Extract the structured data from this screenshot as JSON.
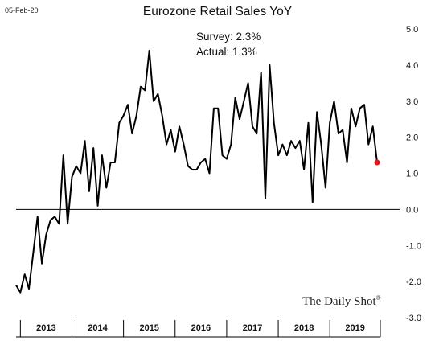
{
  "date_stamp": "05-Feb-20",
  "chart_data": {
    "type": "line",
    "title": "Eurozone Retail Sales YoY",
    "annotations": [
      "Survey: 2.3%",
      "Actual:  1.3%"
    ],
    "watermark": "The Daily Shot",
    "watermark_mark": "®",
    "xlabel": "",
    "ylabel": "",
    "ylim": [
      -3.0,
      5.0
    ],
    "y_ticks": [
      "5.0",
      "4.0",
      "3.0",
      "2.0",
      "1.0",
      "0.0",
      "-1.0",
      "-2.0",
      "-3.0"
    ],
    "x_categories": [
      "2013",
      "2014",
      "2015",
      "2016",
      "2017",
      "2018",
      "2019"
    ],
    "grid": false,
    "zero_line": true,
    "colors": {
      "line": "#000000",
      "last_point": "#e8141a"
    },
    "series": [
      {
        "x": [
          "2012-12",
          "2013-01",
          "2013-02",
          "2013-03",
          "2013-04",
          "2013-05",
          "2013-06",
          "2013-07",
          "2013-08",
          "2013-09",
          "2013-10",
          "2013-11",
          "2013-12",
          "2014-01",
          "2014-02",
          "2014-03",
          "2014-04",
          "2014-05",
          "2014-06",
          "2014-07",
          "2014-08",
          "2014-09",
          "2014-10",
          "2014-11",
          "2014-12",
          "2015-01",
          "2015-02",
          "2015-03",
          "2015-04",
          "2015-05",
          "2015-06",
          "2015-07",
          "2015-08",
          "2015-09",
          "2015-10",
          "2015-11",
          "2015-12",
          "2016-01",
          "2016-02",
          "2016-03",
          "2016-04",
          "2016-05",
          "2016-06",
          "2016-07",
          "2016-08",
          "2016-09",
          "2016-10",
          "2016-11",
          "2016-12",
          "2017-01",
          "2017-02",
          "2017-03",
          "2017-04",
          "2017-05",
          "2017-06",
          "2017-07",
          "2017-08",
          "2017-09",
          "2017-10",
          "2017-11",
          "2017-12",
          "2018-01",
          "2018-02",
          "2018-03",
          "2018-04",
          "2018-05",
          "2018-06",
          "2018-07",
          "2018-08",
          "2018-09",
          "2018-10",
          "2018-11",
          "2018-12",
          "2019-01",
          "2019-02",
          "2019-03",
          "2019-04",
          "2019-05",
          "2019-06",
          "2019-07",
          "2019-08",
          "2019-09",
          "2019-10",
          "2019-11",
          "2019-12"
        ],
        "values": [
          -2.1,
          -2.3,
          -1.8,
          -2.2,
          -1.2,
          -0.2,
          -1.5,
          -0.7,
          -0.3,
          -0.2,
          -0.4,
          1.5,
          -0.4,
          0.9,
          1.2,
          1.0,
          1.9,
          0.5,
          1.7,
          0.1,
          1.5,
          0.6,
          1.3,
          1.3,
          2.4,
          2.6,
          2.9,
          2.1,
          2.6,
          3.4,
          3.3,
          4.4,
          3.0,
          3.2,
          2.6,
          1.8,
          2.2,
          1.6,
          2.3,
          1.8,
          1.2,
          1.1,
          1.1,
          1.3,
          1.4,
          1.0,
          2.8,
          2.8,
          1.5,
          1.4,
          1.8,
          3.1,
          2.5,
          3.0,
          3.5,
          2.3,
          2.1,
          3.8,
          0.3,
          4.0,
          2.4,
          1.5,
          1.8,
          1.5,
          1.9,
          1.7,
          1.9,
          1.1,
          2.4,
          0.2,
          2.7,
          1.8,
          0.6,
          2.4,
          3.0,
          2.1,
          2.2,
          1.3,
          2.8,
          2.3,
          2.8,
          2.9,
          1.8,
          2.3,
          1.3
        ]
      }
    ]
  }
}
